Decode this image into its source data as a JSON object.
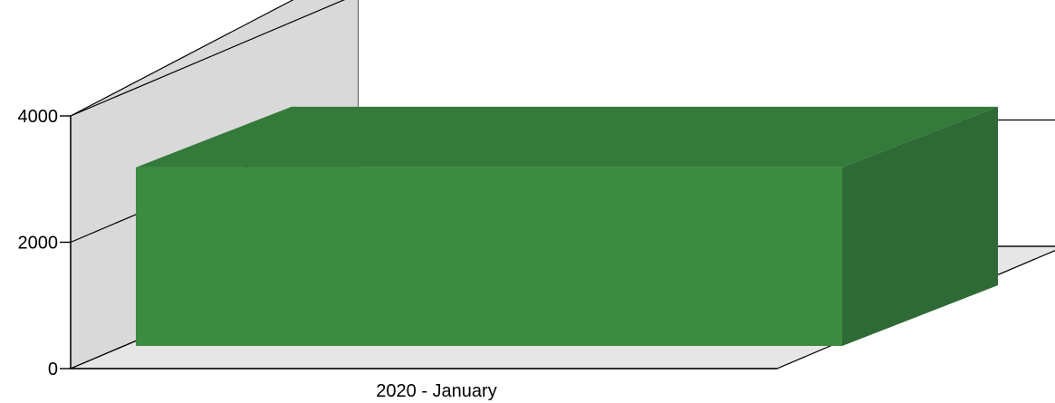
{
  "chart_data": {
    "type": "bar",
    "three_d": true,
    "categories": [
      "2020 - January"
    ],
    "series": [
      {
        "values": [
          3300
        ]
      }
    ],
    "ylim": [
      0,
      4000
    ],
    "yticks": [
      0,
      2000,
      4000
    ],
    "ytick_labels": [
      "0",
      "2000",
      "4000"
    ],
    "grid": true,
    "legend": "none",
    "colors": {
      "bar_front": "#3c8c40",
      "bar_top": "#347a3a",
      "bar_side": "#2e6a35",
      "back_wall": "#ffffff",
      "side_wall": "#d9d9d9",
      "floor": "#e6e6e6",
      "lines": "#000000"
    }
  }
}
